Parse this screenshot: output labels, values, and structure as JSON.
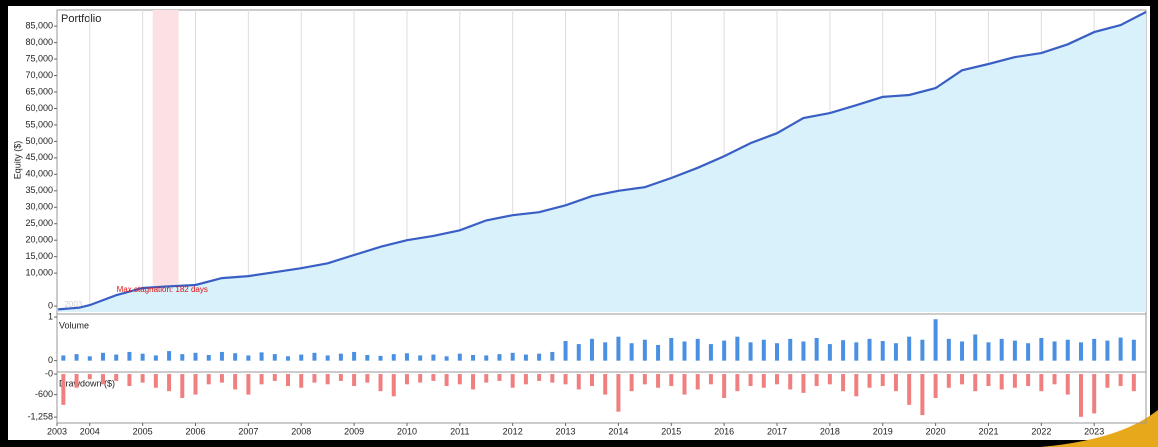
{
  "chart_data": [
    {
      "type": "area",
      "title": "Portfolio",
      "y_label": "Equity ($)",
      "color": "#3a5fc4",
      "fill": "#d8f1fb",
      "x": [
        2003.4,
        2003.8,
        2004,
        2004.5,
        2005,
        2005.5,
        2006,
        2006.5,
        2007,
        2007.5,
        2008,
        2008.5,
        2009,
        2009.5,
        2010,
        2010.5,
        2011,
        2011.5,
        2012,
        2012.5,
        2013,
        2013.5,
        2014,
        2014.5,
        2015,
        2015.5,
        2016,
        2016.5,
        2017,
        2017.5,
        2018,
        2018.5,
        2019,
        2019.5,
        2020,
        2020.5,
        2021,
        2021.5,
        2022,
        2022.5,
        2023,
        2023.5,
        2023.98
      ],
      "values": [
        -1000,
        -500,
        300,
        3300,
        5500,
        6000,
        6400,
        8500,
        9100,
        10300,
        11500,
        13000,
        15500,
        18000,
        20000,
        21300,
        23000,
        26000,
        27600,
        28500,
        30600,
        33400,
        35000,
        36100,
        38900,
        42000,
        45500,
        49500,
        52500,
        57100,
        58600,
        61000,
        63500,
        64100,
        66200,
        71600,
        73500,
        75600,
        76800,
        79500,
        83200,
        85300,
        89300
      ],
      "xlim": [
        2003.38,
        2023.98
      ],
      "ylim": [
        -1800,
        89900
      ],
      "xticks": [
        2004,
        2005,
        2006,
        2007,
        2008,
        2009,
        2010,
        2011,
        2012,
        2013,
        2014,
        2015,
        2016,
        2017,
        2018,
        2019,
        2020,
        2021,
        2022,
        2023
      ],
      "period_labels": [
        "2003",
        "2004",
        "2005",
        "2006",
        "2007",
        "2008",
        "2009",
        "2010",
        "2011",
        "2012",
        "2013",
        "2014",
        "2015",
        "2016",
        "2017",
        "2018",
        "2019",
        "2020",
        "2021",
        "2022",
        "2023"
      ],
      "yticks": [
        0,
        {
          "value": 10000,
          "label": "10,000"
        },
        {
          "value": 15000,
          "label": "15,000"
        },
        {
          "value": 20000,
          "label": "20,000"
        },
        {
          "value": 25000,
          "label": "25,000"
        },
        {
          "value": 30000,
          "label": "30,000"
        },
        {
          "value": 35000,
          "label": "35,000"
        },
        {
          "value": 40000,
          "label": "40,000"
        },
        {
          "value": 45000,
          "label": "45,000"
        },
        {
          "value": 50000,
          "label": "50,000"
        },
        {
          "value": 55000,
          "label": "55,000"
        },
        {
          "value": 60000,
          "label": "60,000"
        },
        {
          "value": 65000,
          "label": "65,000"
        },
        {
          "value": 70000,
          "label": "70,000"
        },
        {
          "value": 75000,
          "label": "75,000"
        },
        {
          "value": 80000,
          "label": "80,000"
        },
        {
          "value": 85000,
          "label": "85,000"
        }
      ],
      "grid": true,
      "stagnation": {
        "label": "Max stagnation: 182 days",
        "start": 2005.19,
        "end": 2005.68,
        "color": "#fde0e3"
      }
    },
    {
      "type": "bar",
      "title": "Volume",
      "color": "#4a90e2",
      "x": [
        2003.5,
        2003.75,
        2004,
        2004.25,
        2004.5,
        2004.75,
        2005,
        2005.25,
        2005.5,
        2005.75,
        2006,
        2006.25,
        2006.5,
        2006.75,
        2007,
        2007.25,
        2007.5,
        2007.75,
        2008,
        2008.25,
        2008.5,
        2008.75,
        2009,
        2009.25,
        2009.5,
        2009.75,
        2010,
        2010.25,
        2010.5,
        2010.75,
        2011,
        2011.25,
        2011.5,
        2011.75,
        2012,
        2012.25,
        2012.5,
        2012.75,
        2013,
        2013.25,
        2013.5,
        2013.75,
        2014,
        2014.25,
        2014.5,
        2014.75,
        2015,
        2015.25,
        2015.5,
        2015.75,
        2016,
        2016.25,
        2016.5,
        2016.75,
        2017,
        2017.25,
        2017.5,
        2017.75,
        2018,
        2018.25,
        2018.5,
        2018.75,
        2019,
        2019.25,
        2019.5,
        2019.75,
        2020,
        2020.25,
        2020.5,
        2020.75,
        2021,
        2021.25,
        2021.5,
        2021.75,
        2022,
        2022.25,
        2022.5,
        2022.75,
        2023,
        2023.25,
        2023.5,
        2023.75
      ],
      "values": [
        0.12,
        0.15,
        0.1,
        0.18,
        0.14,
        0.2,
        0.16,
        0.12,
        0.22,
        0.15,
        0.18,
        0.13,
        0.2,
        0.17,
        0.12,
        0.19,
        0.15,
        0.1,
        0.14,
        0.18,
        0.12,
        0.16,
        0.2,
        0.13,
        0.11,
        0.15,
        0.17,
        0.12,
        0.14,
        0.1,
        0.16,
        0.13,
        0.12,
        0.15,
        0.18,
        0.14,
        0.16,
        0.2,
        0.45,
        0.38,
        0.5,
        0.42,
        0.55,
        0.4,
        0.48,
        0.36,
        0.52,
        0.44,
        0.5,
        0.38,
        0.46,
        0.55,
        0.42,
        0.48,
        0.4,
        0.5,
        0.44,
        0.52,
        0.38,
        0.47,
        0.42,
        0.5,
        0.45,
        0.4,
        0.55,
        0.48,
        0.95,
        0.5,
        0.44,
        0.6,
        0.42,
        0.5,
        0.46,
        0.4,
        0.52,
        0.44,
        0.48,
        0.42,
        0.5,
        0.46,
        0.53,
        0.48
      ],
      "xlim": [
        2003.38,
        2023.98
      ],
      "ylim": [
        -0.26,
        1.07
      ],
      "yticks": [
        0,
        1
      ]
    },
    {
      "type": "bar",
      "title": "Drawdown ($)",
      "color": "#f08080",
      "x": [
        2003.5,
        2003.75,
        2004,
        2004.25,
        2004.5,
        2004.75,
        2005,
        2005.25,
        2005.5,
        2005.75,
        2006,
        2006.25,
        2006.5,
        2006.75,
        2007,
        2007.25,
        2007.5,
        2007.75,
        2008,
        2008.25,
        2008.5,
        2008.75,
        2009,
        2009.25,
        2009.5,
        2009.75,
        2010,
        2010.25,
        2010.5,
        2010.75,
        2011,
        2011.25,
        2011.5,
        2011.75,
        2012,
        2012.25,
        2012.5,
        2012.75,
        2013,
        2013.25,
        2013.5,
        2013.75,
        2014,
        2014.25,
        2014.5,
        2014.75,
        2015,
        2015.25,
        2015.5,
        2015.75,
        2016,
        2016.25,
        2016.5,
        2016.75,
        2017,
        2017.25,
        2017.5,
        2017.75,
        2018,
        2018.25,
        2018.5,
        2018.75,
        2019,
        2019.25,
        2019.5,
        2019.75,
        2020,
        2020.25,
        2020.5,
        2020.75,
        2021,
        2021.25,
        2021.5,
        2021.75,
        2022,
        2022.25,
        2022.5,
        2022.75,
        2023,
        2023.25,
        2023.5,
        2023.75
      ],
      "values": [
        -900,
        -400,
        -150,
        -300,
        -200,
        -350,
        -250,
        -400,
        -500,
        -700,
        -600,
        -300,
        -250,
        -450,
        -600,
        -300,
        -200,
        -350,
        -400,
        -250,
        -300,
        -200,
        -350,
        -250,
        -500,
        -650,
        -300,
        -250,
        -200,
        -350,
        -300,
        -450,
        -250,
        -200,
        -400,
        -300,
        -200,
        -250,
        -300,
        -450,
        -350,
        -600,
        -1100,
        -500,
        -300,
        -400,
        -350,
        -600,
        -450,
        -300,
        -700,
        -500,
        -350,
        -400,
        -300,
        -450,
        -550,
        -350,
        -300,
        -500,
        -650,
        -400,
        -350,
        -500,
        -900,
        -1200,
        -700,
        -400,
        -300,
        -500,
        -350,
        -450,
        -400,
        -350,
        -500,
        -300,
        -600,
        -1250,
        -1150,
        -400,
        -350,
        -500
      ],
      "xlim": [
        2003.38,
        2023.98
      ],
      "ylim": [
        -1430,
        60
      ],
      "yticks": [
        {
          "value": 0,
          "label": "-0"
        },
        -600,
        {
          "value": -1258,
          "label": "-1,258"
        }
      ],
      "xticks": [
        {
          "value": 2003.38,
          "label": "2003"
        },
        2004,
        2005,
        2006,
        2007,
        2008,
        2009,
        2010,
        2011,
        2012,
        2013,
        2014,
        2015,
        2016,
        2017,
        2018,
        2019,
        2020,
        2021,
        2022,
        2023
      ]
    }
  ]
}
